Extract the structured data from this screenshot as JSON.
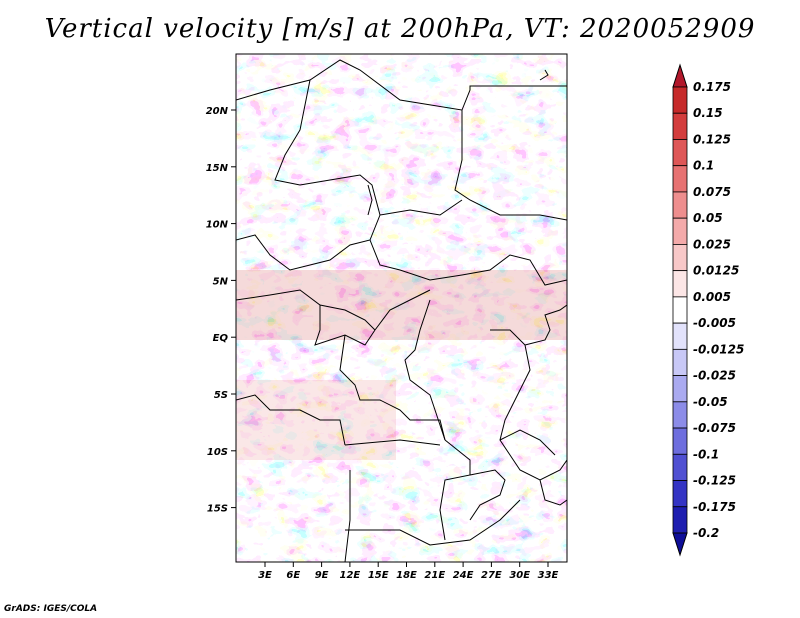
{
  "title": "Vertical velocity [m/s] at 200hPa, VT: 2020052909",
  "footer": "GrADS: IGES/COLA",
  "map": {
    "lat_labels": [
      "20N",
      "15N",
      "10N",
      "5N",
      "EQ",
      "5S",
      "10S",
      "15S"
    ],
    "lon_labels": [
      "3E",
      "6E",
      "9E",
      "12E",
      "15E",
      "18E",
      "21E",
      "24E",
      "27E",
      "30E",
      "33E"
    ]
  },
  "colorbar": {
    "labels": [
      "0.175",
      "0.15",
      "0.125",
      "0.1",
      "0.075",
      "0.05",
      "0.025",
      "0.0125",
      "0.005",
      "-0.005",
      "-0.0125",
      "-0.025",
      "-0.05",
      "-0.075",
      "-0.1",
      "-0.125",
      "-0.175",
      "-0.2"
    ],
    "colors": [
      "#b2182b",
      "#c62a2a",
      "#d33d3d",
      "#de5757",
      "#e77272",
      "#ee8e8e",
      "#f4aaaa",
      "#f8c8c8",
      "#fce6e6",
      "#ffffff",
      "#e2e2fb",
      "#c8c8f6",
      "#aaaaf0",
      "#8c8ce8",
      "#6e6ede",
      "#5050d2",
      "#3434c4",
      "#1e1eb0",
      "#0e0e98"
    ]
  },
  "field": {
    "cmap_pos": "#e05050",
    "cmap_neg": "#5a5ae6"
  }
}
